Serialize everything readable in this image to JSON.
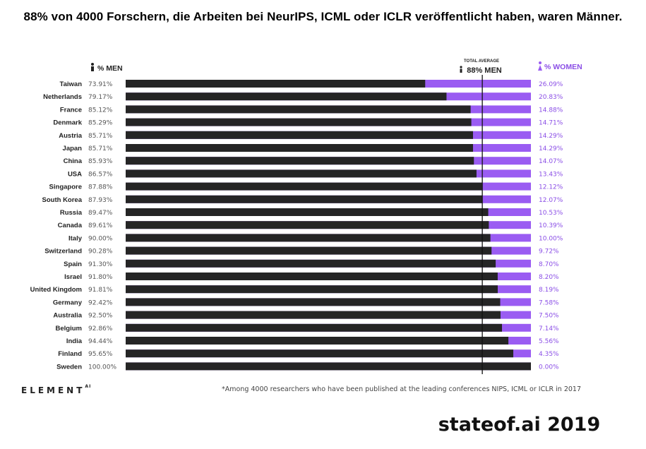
{
  "headline": "88% von 4000 Forschern, die Arbeiten bei NeurIPS, ICML oder ICLR veröffentlicht haben, waren Männer.",
  "watermark": "stateof.ai 2019",
  "brand": {
    "name": "ELEMENT",
    "suffix": "AI"
  },
  "footnote": "*Among 4000 researchers who have been published at the leading conferences NIPS, ICML or ICLR in 2017",
  "colors": {
    "men": "#252525",
    "women": "#9a5cf2",
    "women_text": "#8b4fe6",
    "text": "#222222",
    "muted": "#555555"
  },
  "chart_data": {
    "type": "bar",
    "orientation": "horizontal",
    "stacked": true,
    "legend": {
      "men_label": "% MEN",
      "women_label": "% WOMEN"
    },
    "reference": {
      "label_top": "TOTAL AVERAGE",
      "label": "88% MEN",
      "value": 88
    },
    "xlim": [
      0,
      100
    ],
    "categories": [
      "Taiwan",
      "Netherlands",
      "France",
      "Denmark",
      "Austria",
      "Japan",
      "China",
      "USA",
      "Singapore",
      "South Korea",
      "Russia",
      "Canada",
      "Italy",
      "Switzerland",
      "Spain",
      "Israel",
      "United Kingdom",
      "Germany",
      "Australia",
      "Belgium",
      "India",
      "Finland",
      "Sweden"
    ],
    "series": [
      {
        "name": "% MEN",
        "values": [
          73.91,
          79.17,
          85.12,
          85.29,
          85.71,
          85.71,
          85.93,
          86.57,
          87.88,
          87.93,
          89.47,
          89.61,
          90.0,
          90.28,
          91.3,
          91.8,
          91.81,
          92.42,
          92.5,
          92.86,
          94.44,
          95.65,
          100.0
        ],
        "labels": [
          "73.91%",
          "79.17%",
          "85.12%",
          "85.29%",
          "85.71%",
          "85.71%",
          "85.93%",
          "86.57%",
          "87.88%",
          "87.93%",
          "89.47%",
          "89.61%",
          "90.00%",
          "90.28%",
          "91.30%",
          "91.80%",
          "91.81%",
          "92.42%",
          "92.50%",
          "92.86%",
          "94.44%",
          "95.65%",
          "100.00%"
        ]
      },
      {
        "name": "% WOMEN",
        "values": [
          26.09,
          20.83,
          14.88,
          14.71,
          14.29,
          14.29,
          14.07,
          13.43,
          12.12,
          12.07,
          10.53,
          10.39,
          10.0,
          9.72,
          8.7,
          8.2,
          8.19,
          7.58,
          7.5,
          7.14,
          5.56,
          4.35,
          0.0
        ],
        "labels": [
          "26.09%",
          "20.83%",
          "14.88%",
          "14.71%",
          "14.29%",
          "14.29%",
          "14.07%",
          "13.43%",
          "12.12%",
          "12.07%",
          "10.53%",
          "10.39%",
          "10.00%",
          "9.72%",
          "8.70%",
          "8.20%",
          "8.19%",
          "7.58%",
          "7.50%",
          "7.14%",
          "5.56%",
          "4.35%",
          "0.00%"
        ]
      }
    ]
  }
}
